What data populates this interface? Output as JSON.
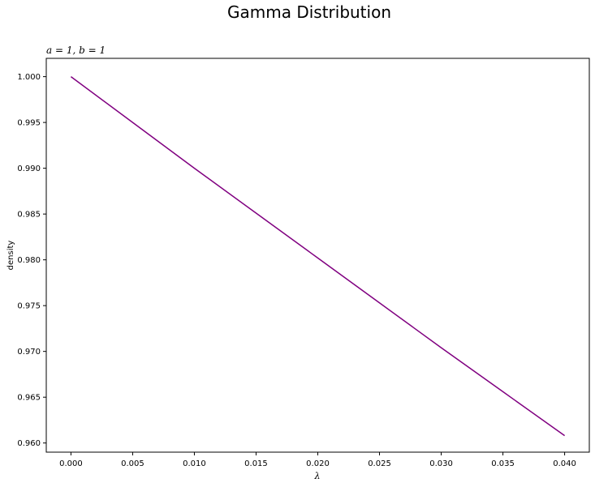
{
  "chart_data": {
    "type": "line",
    "suptitle": "Gamma Distribution",
    "title": "a = 1, b = 1",
    "xlabel": "λ",
    "ylabel": "density",
    "xlim": [
      -0.002,
      0.042
    ],
    "ylim": [
      0.959,
      1.002
    ],
    "xticks": [
      0.0,
      0.005,
      0.01,
      0.015,
      0.02,
      0.025,
      0.03,
      0.035,
      0.04
    ],
    "xtick_labels": [
      "0.000",
      "0.005",
      "0.010",
      "0.015",
      "0.020",
      "0.025",
      "0.030",
      "0.035",
      "0.040"
    ],
    "yticks": [
      0.96,
      0.965,
      0.97,
      0.975,
      0.98,
      0.985,
      0.99,
      0.995,
      1.0
    ],
    "ytick_labels": [
      "0.960",
      "0.965",
      "0.970",
      "0.975",
      "0.980",
      "0.985",
      "0.990",
      "0.995",
      "1.000"
    ],
    "grid": false,
    "series": [
      {
        "color": "#800080",
        "x": [
          0.0,
          0.005,
          0.01,
          0.015,
          0.02,
          0.025,
          0.03,
          0.035,
          0.04
        ],
        "y": [
          1.0,
          0.995,
          0.99,
          0.9851,
          0.9802,
          0.9753,
          0.9704,
          0.9656,
          0.9608
        ]
      }
    ]
  }
}
